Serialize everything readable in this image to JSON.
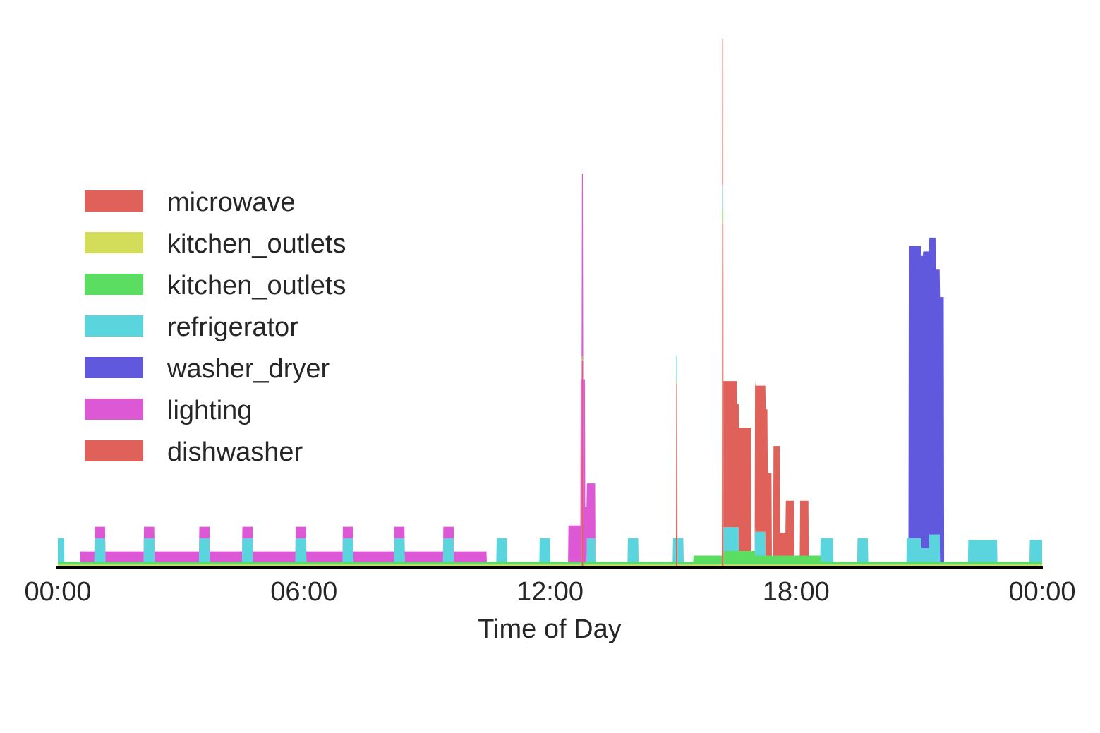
{
  "chart_data": {
    "type": "area",
    "stacked": true,
    "xlabel": "Time of Day",
    "ylabel": "",
    "title": "",
    "x_unit": "hours",
    "xlim": [
      0,
      24
    ],
    "ylim": [
      0,
      11000
    ],
    "xticks": [
      {
        "value": 0,
        "label": "00:00"
      },
      {
        "value": 6,
        "label": "06:00"
      },
      {
        "value": 12,
        "label": "12:00"
      },
      {
        "value": 18,
        "label": "18:00"
      },
      {
        "value": 24,
        "label": "00:00"
      }
    ],
    "grid": false,
    "legend_position": "upper-left",
    "series": [
      {
        "name": "microwave",
        "color": "#e0605a",
        "segments": [
          {
            "start": 12.78,
            "end": 12.8,
            "value": 4500
          },
          {
            "start": 15.08,
            "end": 15.1,
            "value": 4000
          },
          {
            "start": 16.2,
            "end": 16.22,
            "value": 7500
          }
        ]
      },
      {
        "name": "kitchen_outlets",
        "color": "#d4dd5a",
        "segments": [
          {
            "start": 0,
            "end": 24,
            "value": 25
          }
        ]
      },
      {
        "name": "kitchen_outlets",
        "color": "#5add60",
        "segments": [
          {
            "start": 0,
            "end": 24,
            "value": 60
          },
          {
            "start": 15.5,
            "end": 16.2,
            "value": 200
          },
          {
            "start": 16.2,
            "end": 17.0,
            "value": 300
          },
          {
            "start": 17.0,
            "end": 18.6,
            "value": 200
          }
        ]
      },
      {
        "name": "refrigerator",
        "color": "#5ad4dd",
        "segments": [
          {
            "start": 0.0,
            "end": 0.15,
            "value": 520
          },
          {
            "start": 0.9,
            "end": 1.15,
            "value": 520
          },
          {
            "start": 2.1,
            "end": 2.35,
            "value": 520
          },
          {
            "start": 3.45,
            "end": 3.7,
            "value": 520
          },
          {
            "start": 4.5,
            "end": 4.75,
            "value": 520
          },
          {
            "start": 5.8,
            "end": 6.05,
            "value": 520
          },
          {
            "start": 6.95,
            "end": 7.2,
            "value": 520
          },
          {
            "start": 8.2,
            "end": 8.45,
            "value": 520
          },
          {
            "start": 9.4,
            "end": 9.65,
            "value": 520
          },
          {
            "start": 10.7,
            "end": 10.95,
            "value": 520
          },
          {
            "start": 11.75,
            "end": 12.0,
            "value": 520
          },
          {
            "start": 12.9,
            "end": 13.1,
            "value": 520
          },
          {
            "start": 13.9,
            "end": 14.15,
            "value": 520
          },
          {
            "start": 15.0,
            "end": 15.25,
            "value": 520
          },
          {
            "start": 16.2,
            "end": 16.6,
            "value": 520
          },
          {
            "start": 17.0,
            "end": 17.25,
            "value": 520
          },
          {
            "start": 18.6,
            "end": 18.9,
            "value": 520
          },
          {
            "start": 19.5,
            "end": 19.75,
            "value": 520
          },
          {
            "start": 20.7,
            "end": 21.05,
            "value": 520
          },
          {
            "start": 21.05,
            "end": 21.25,
            "value": 300
          },
          {
            "start": 21.25,
            "end": 21.5,
            "value": 600
          },
          {
            "start": 22.2,
            "end": 22.9,
            "value": 480
          },
          {
            "start": 23.7,
            "end": 24.0,
            "value": 480
          }
        ]
      },
      {
        "name": "washer_dryer",
        "color": "#6058dd",
        "segments": [
          {
            "start": 20.75,
            "end": 21.1,
            "value": 6400
          },
          {
            "start": 21.1,
            "end": 21.4,
            "value": 6500
          },
          {
            "start": 21.4,
            "end": 21.6,
            "value": 5800
          }
        ]
      },
      {
        "name": "lighting",
        "color": "#dd58d4",
        "segments": [
          {
            "start": 0.55,
            "end": 10.45,
            "value": 230
          },
          {
            "start": 0.9,
            "end": 1.15,
            "value": 250
          },
          {
            "start": 2.1,
            "end": 2.35,
            "value": 250
          },
          {
            "start": 3.45,
            "end": 3.7,
            "value": 250
          },
          {
            "start": 4.5,
            "end": 4.75,
            "value": 250
          },
          {
            "start": 5.8,
            "end": 6.05,
            "value": 250
          },
          {
            "start": 6.95,
            "end": 7.2,
            "value": 250
          },
          {
            "start": 8.2,
            "end": 8.45,
            "value": 250
          },
          {
            "start": 9.4,
            "end": 9.65,
            "value": 250
          },
          {
            "start": 12.45,
            "end": 12.75,
            "value": 800
          },
          {
            "start": 12.75,
            "end": 12.85,
            "value": 4000
          },
          {
            "start": 12.85,
            "end": 13.1,
            "value": 1200
          }
        ]
      },
      {
        "name": "dishwasher",
        "color": "#e0605a",
        "segments": [
          {
            "start": 16.2,
            "end": 16.55,
            "value": 3200
          },
          {
            "start": 16.55,
            "end": 16.9,
            "value": 2700
          },
          {
            "start": 17.0,
            "end": 17.3,
            "value": 3200
          },
          {
            "start": 17.3,
            "end": 17.4,
            "value": 1800
          },
          {
            "start": 17.45,
            "end": 17.6,
            "value": 2400
          },
          {
            "start": 17.6,
            "end": 17.75,
            "value": 500
          },
          {
            "start": 17.75,
            "end": 17.95,
            "value": 1200
          },
          {
            "start": 18.1,
            "end": 18.3,
            "value": 1200
          }
        ]
      }
    ]
  }
}
